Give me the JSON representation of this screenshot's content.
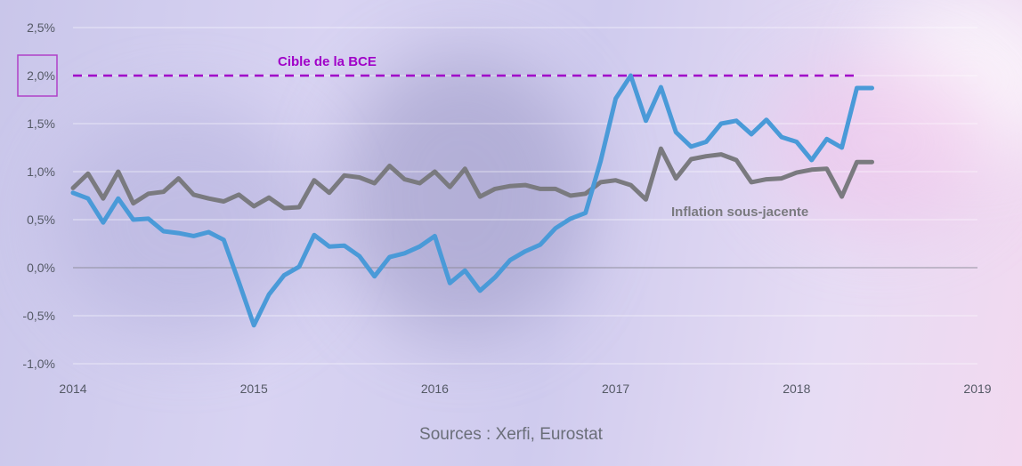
{
  "chart_data": {
    "type": "line",
    "x_ticks": [
      "2014",
      "2015",
      "2016",
      "2017",
      "2018",
      "2019"
    ],
    "y_ticks": [
      "2,5%",
      "2,0%",
      "1,5%",
      "1,0%",
      "0,5%",
      "0,0%",
      "-0,5%",
      "-1,0%"
    ],
    "ylim": [
      -1.0,
      2.5
    ],
    "xlim": [
      2014,
      2019
    ],
    "grid": true,
    "target": {
      "label": "Cible de la BCE",
      "value": 2.0,
      "color": "#a000c8"
    },
    "series": [
      {
        "name": "",
        "color": "#4a9ad8",
        "x": [
          2014.0,
          2014.083,
          2014.167,
          2014.25,
          2014.333,
          2014.417,
          2014.5,
          2014.583,
          2014.667,
          2014.75,
          2014.833,
          2014.917,
          2015.0,
          2015.083,
          2015.167,
          2015.25,
          2015.333,
          2015.417,
          2015.5,
          2015.583,
          2015.667,
          2015.75,
          2015.833,
          2015.917,
          2016.0,
          2016.083,
          2016.167,
          2016.25,
          2016.333,
          2016.417,
          2016.5,
          2016.583,
          2016.667,
          2016.75,
          2016.833,
          2016.917,
          2017.0,
          2017.083,
          2017.167,
          2017.25,
          2017.333,
          2017.417,
          2017.5,
          2017.583,
          2017.667,
          2017.75,
          2017.833,
          2017.917,
          2018.0,
          2018.083,
          2018.167,
          2018.25,
          2018.333,
          2018.417
        ],
        "values": [
          0.78,
          0.72,
          0.47,
          0.72,
          0.5,
          0.51,
          0.38,
          0.36,
          0.33,
          0.37,
          0.29,
          -0.15,
          -0.6,
          -0.28,
          -0.08,
          0.01,
          0.34,
          0.22,
          0.23,
          0.12,
          -0.09,
          0.11,
          0.15,
          0.22,
          0.33,
          -0.16,
          -0.03,
          -0.24,
          -0.1,
          0.08,
          0.17,
          0.24,
          0.41,
          0.51,
          0.57,
          1.11,
          1.76,
          2.0,
          1.53,
          1.88,
          1.41,
          1.26,
          1.31,
          1.5,
          1.53,
          1.39,
          1.54,
          1.36,
          1.31,
          1.12,
          1.34,
          1.25,
          1.87,
          1.87
        ]
      },
      {
        "name": "Inflation sous-jacente",
        "color": "#7a7a7f",
        "x": [
          2014.0,
          2014.083,
          2014.167,
          2014.25,
          2014.333,
          2014.417,
          2014.5,
          2014.583,
          2014.667,
          2014.75,
          2014.833,
          2014.917,
          2015.0,
          2015.083,
          2015.167,
          2015.25,
          2015.333,
          2015.417,
          2015.5,
          2015.583,
          2015.667,
          2015.75,
          2015.833,
          2015.917,
          2016.0,
          2016.083,
          2016.167,
          2016.25,
          2016.333,
          2016.417,
          2016.5,
          2016.583,
          2016.667,
          2016.75,
          2016.833,
          2016.917,
          2017.0,
          2017.083,
          2017.167,
          2017.25,
          2017.333,
          2017.417,
          2017.5,
          2017.583,
          2017.667,
          2017.75,
          2017.833,
          2017.917,
          2018.0,
          2018.083,
          2018.167,
          2018.25,
          2018.333,
          2018.417
        ],
        "values": [
          0.83,
          0.98,
          0.72,
          1.0,
          0.67,
          0.77,
          0.79,
          0.93,
          0.76,
          0.72,
          0.69,
          0.76,
          0.64,
          0.73,
          0.62,
          0.63,
          0.91,
          0.78,
          0.96,
          0.94,
          0.88,
          1.06,
          0.92,
          0.88,
          1.0,
          0.84,
          1.03,
          0.74,
          0.82,
          0.85,
          0.86,
          0.82,
          0.82,
          0.75,
          0.77,
          0.89,
          0.91,
          0.86,
          0.71,
          1.24,
          0.93,
          1.13,
          1.16,
          1.18,
          1.12,
          0.89,
          0.92,
          0.93,
          0.99,
          1.02,
          1.03,
          0.74,
          1.1,
          1.1
        ]
      }
    ]
  },
  "source": "Sources : Xerfi, Eurostat"
}
